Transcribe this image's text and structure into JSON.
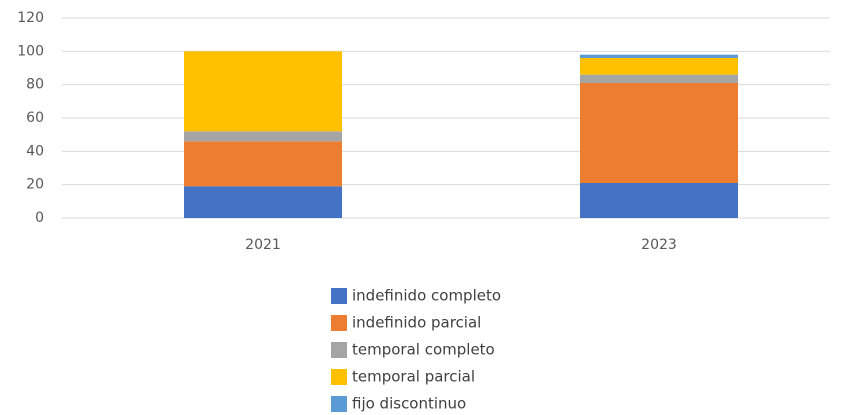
{
  "chart_data": {
    "type": "stacked_bar",
    "categories": [
      "2021",
      "2023"
    ],
    "series": [
      {
        "name": "indefinido completo",
        "color": "#4472c4",
        "values": [
          19,
          21
        ]
      },
      {
        "name": "indefinido parcial",
        "color": "#ed7d31",
        "values": [
          27,
          60
        ]
      },
      {
        "name": "temporal completo",
        "color": "#a5a5a5",
        "values": [
          6,
          5
        ]
      },
      {
        "name": "temporal parcial",
        "color": "#ffc000",
        "values": [
          48,
          10
        ]
      },
      {
        "name": "fijo discontinuo",
        "color": "#5b9bd5",
        "values": [
          0,
          2
        ]
      }
    ],
    "ylim": [
      0,
      120
    ],
    "yticks": [
      0,
      20,
      40,
      60,
      80,
      100,
      120
    ],
    "grid": true,
    "legend": "bottom"
  }
}
